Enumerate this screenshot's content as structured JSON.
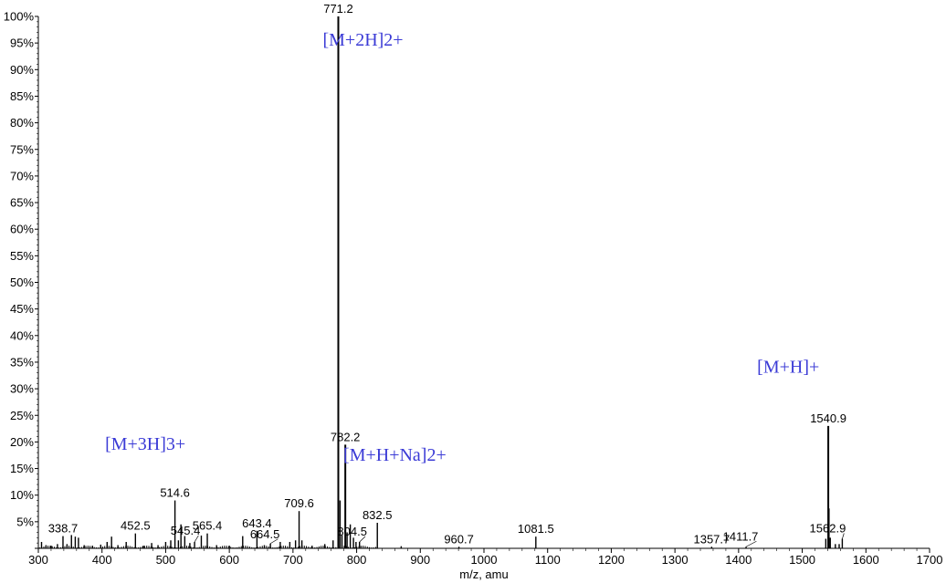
{
  "chart_data": {
    "type": "bar",
    "title": "",
    "xlabel": "m/z, amu",
    "ylabel": "",
    "xlim": [
      300,
      1700
    ],
    "ylim": [
      0,
      100
    ],
    "x_ticks": [
      300,
      400,
      500,
      600,
      700,
      800,
      900,
      1000,
      1100,
      1200,
      1300,
      1400,
      1500,
      1600,
      1700
    ],
    "y_ticks": [
      0,
      5,
      10,
      15,
      20,
      25,
      30,
      35,
      40,
      45,
      50,
      55,
      60,
      65,
      70,
      75,
      80,
      85,
      90,
      95,
      100
    ],
    "y_tick_suffix": "%",
    "grid": false,
    "colors": {
      "peaks": "#000000",
      "ion_labels": "#3b3bd6"
    },
    "peaks": [
      {
        "mz": 305,
        "intensity": 1.2
      },
      {
        "mz": 312,
        "intensity": 0.6
      },
      {
        "mz": 320,
        "intensity": 0.5
      },
      {
        "mz": 330,
        "intensity": 0.8
      },
      {
        "mz": 338.7,
        "intensity": 2.3
      },
      {
        "mz": 345,
        "intensity": 0.8
      },
      {
        "mz": 352,
        "intensity": 2.5
      },
      {
        "mz": 358,
        "intensity": 2.2
      },
      {
        "mz": 363,
        "intensity": 2.0
      },
      {
        "mz": 372,
        "intensity": 0.6
      },
      {
        "mz": 385,
        "intensity": 0.5
      },
      {
        "mz": 398,
        "intensity": 0.7
      },
      {
        "mz": 408,
        "intensity": 1.2
      },
      {
        "mz": 415,
        "intensity": 2.2
      },
      {
        "mz": 425,
        "intensity": 0.6
      },
      {
        "mz": 438,
        "intensity": 1.2
      },
      {
        "mz": 452.5,
        "intensity": 2.8
      },
      {
        "mz": 465,
        "intensity": 0.5
      },
      {
        "mz": 478,
        "intensity": 1.0
      },
      {
        "mz": 488,
        "intensity": 0.6
      },
      {
        "mz": 500,
        "intensity": 1.2
      },
      {
        "mz": 508,
        "intensity": 1.5
      },
      {
        "mz": 514.6,
        "intensity": 9.0
      },
      {
        "mz": 520,
        "intensity": 1.5
      },
      {
        "mz": 524,
        "intensity": 4.5
      },
      {
        "mz": 530,
        "intensity": 2.3
      },
      {
        "mz": 538,
        "intensity": 1.0
      },
      {
        "mz": 545.4,
        "intensity": 1.2
      },
      {
        "mz": 556,
        "intensity": 2.4
      },
      {
        "mz": 565.4,
        "intensity": 2.8
      },
      {
        "mz": 580,
        "intensity": 0.6
      },
      {
        "mz": 600,
        "intensity": 0.5
      },
      {
        "mz": 621,
        "intensity": 2.3
      },
      {
        "mz": 643.4,
        "intensity": 3.3
      },
      {
        "mz": 655,
        "intensity": 0.6
      },
      {
        "mz": 664.5,
        "intensity": 0.9
      },
      {
        "mz": 680,
        "intensity": 1.2
      },
      {
        "mz": 695,
        "intensity": 1.2
      },
      {
        "mz": 704,
        "intensity": 1.5
      },
      {
        "mz": 709.6,
        "intensity": 7.0
      },
      {
        "mz": 714,
        "intensity": 1.5
      },
      {
        "mz": 730,
        "intensity": 0.5
      },
      {
        "mz": 750,
        "intensity": 0.8
      },
      {
        "mz": 763,
        "intensity": 1.5
      },
      {
        "mz": 771.2,
        "intensity": 100.0
      },
      {
        "mz": 774,
        "intensity": 9.0
      },
      {
        "mz": 777,
        "intensity": 2.5
      },
      {
        "mz": 782.2,
        "intensity": 19.5
      },
      {
        "mz": 785,
        "intensity": 3.0
      },
      {
        "mz": 790,
        "intensity": 4.5
      },
      {
        "mz": 795,
        "intensity": 2.0
      },
      {
        "mz": 799,
        "intensity": 1.2
      },
      {
        "mz": 804.5,
        "intensity": 1.2
      },
      {
        "mz": 832.5,
        "intensity": 4.8
      },
      {
        "mz": 870,
        "intensity": 0.4
      },
      {
        "mz": 960.7,
        "intensity": 0.3
      },
      {
        "mz": 1081.5,
        "intensity": 2.2
      },
      {
        "mz": 1357.7,
        "intensity": 0.3
      },
      {
        "mz": 1411.7,
        "intensity": 0.3
      },
      {
        "mz": 1537,
        "intensity": 1.8
      },
      {
        "mz": 1540.9,
        "intensity": 23.0
      },
      {
        "mz": 1542,
        "intensity": 7.5
      },
      {
        "mz": 1544,
        "intensity": 2.0
      },
      {
        "mz": 1552,
        "intensity": 0.8
      },
      {
        "mz": 1558,
        "intensity": 0.8
      },
      {
        "mz": 1562.9,
        "intensity": 1.8
      }
    ],
    "peak_labels": [
      {
        "text": "771.2",
        "mz": 771.2,
        "intensity": 100.0
      },
      {
        "text": "782.2",
        "mz": 782.2,
        "intensity": 19.5
      },
      {
        "text": "1540.9",
        "mz": 1540.9,
        "intensity": 23.0
      },
      {
        "text": "514.6",
        "mz": 514.6,
        "intensity": 9.0
      },
      {
        "text": "709.6",
        "mz": 709.6,
        "intensity": 7.0
      },
      {
        "text": "832.5",
        "mz": 832.5,
        "intensity": 4.8
      },
      {
        "text": "338.7",
        "mz": 338.7,
        "intensity": 2.3
      },
      {
        "text": "452.5",
        "mz": 452.5,
        "intensity": 2.8
      },
      {
        "text": "565.4",
        "mz": 565.4,
        "intensity": 2.8
      },
      {
        "text": "643.4",
        "mz": 643.4,
        "intensity": 3.3
      },
      {
        "text": "545.4",
        "mz": 545.4,
        "intensity": 1.2
      },
      {
        "text": "664.5",
        "mz": 664.5,
        "intensity": 0.9
      },
      {
        "text": "804.5",
        "mz": 804.5,
        "intensity": 1.2
      },
      {
        "text": "1081.5",
        "mz": 1081.5,
        "intensity": 2.2
      },
      {
        "text": "960.7",
        "mz": 960.7,
        "intensity": 0.3
      },
      {
        "text": "1357.7",
        "mz": 1357.7,
        "intensity": 0.3
      },
      {
        "text": "1411.7",
        "mz": 1411.7,
        "intensity": 0.3
      },
      {
        "text": "1562.9",
        "mz": 1562.9,
        "intensity": 1.8
      }
    ],
    "annotations": [
      {
        "text": "[M+2H]2+",
        "mz": 810,
        "intensity": 94.5
      },
      {
        "text": "[M+H]+",
        "mz": 1478,
        "intensity": 33.0
      },
      {
        "text": "[M+3H]3+",
        "mz": 468,
        "intensity": 18.5
      },
      {
        "text": "[M+H+Na]2+",
        "mz": 860,
        "intensity": 16.5
      }
    ]
  }
}
